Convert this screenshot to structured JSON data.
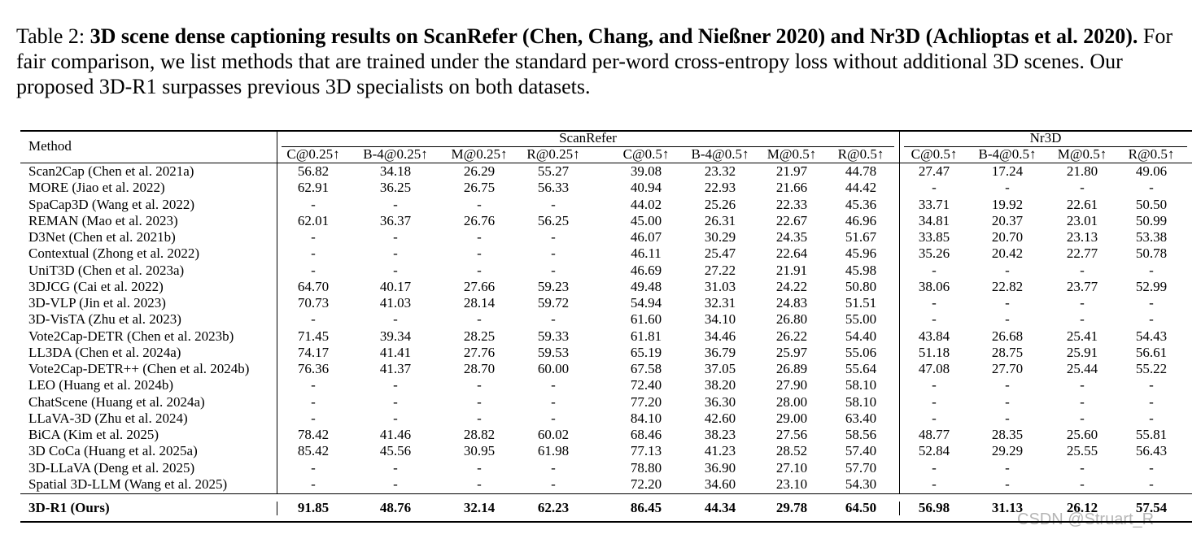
{
  "caption": {
    "label": "Table 2:",
    "title": "3D scene dense captioning results on ScanRefer (Chen, Chang, and Nießner 2020) and Nr3D (Achlioptas et al. 2020).",
    "text": "For fair comparison, we list methods that are trained under the standard per-word cross-entropy loss without additional 3D scenes. Our proposed 3D-R1 surpasses previous 3D specialists on both datasets."
  },
  "table": {
    "method_header": "Method",
    "groups": [
      {
        "name": "ScanRefer",
        "columns": [
          "C@0.25↑",
          "B-4@0.25↑",
          "M@0.25↑",
          "R@0.25↑",
          "C@0.5↑",
          "B-4@0.5↑",
          "M@0.5↑",
          "R@0.5↑"
        ]
      },
      {
        "name": "Nr3D",
        "columns": [
          "C@0.5↑",
          "B-4@0.5↑",
          "M@0.5↑",
          "R@0.5↑"
        ]
      }
    ],
    "rows": [
      [
        "Scan2Cap (Chen et al. 2021a)",
        "56.82",
        "34.18",
        "26.29",
        "55.27",
        "39.08",
        "23.32",
        "21.97",
        "44.78",
        "27.47",
        "17.24",
        "21.80",
        "49.06"
      ],
      [
        "MORE (Jiao et al. 2022)",
        "62.91",
        "36.25",
        "26.75",
        "56.33",
        "40.94",
        "22.93",
        "21.66",
        "44.42",
        "-",
        "-",
        "-",
        "-"
      ],
      [
        "SpaCap3D (Wang et al. 2022)",
        "-",
        "-",
        "-",
        "-",
        "44.02",
        "25.26",
        "22.33",
        "45.36",
        "33.71",
        "19.92",
        "22.61",
        "50.50"
      ],
      [
        "REMAN (Mao et al. 2023)",
        "62.01",
        "36.37",
        "26.76",
        "56.25",
        "45.00",
        "26.31",
        "22.67",
        "46.96",
        "34.81",
        "20.37",
        "23.01",
        "50.99"
      ],
      [
        "D3Net (Chen et al. 2021b)",
        "-",
        "-",
        "-",
        "-",
        "46.07",
        "30.29",
        "24.35",
        "51.67",
        "33.85",
        "20.70",
        "23.13",
        "53.38"
      ],
      [
        "Contextual (Zhong et al. 2022)",
        "-",
        "-",
        "-",
        "-",
        "46.11",
        "25.47",
        "22.64",
        "45.96",
        "35.26",
        "20.42",
        "22.77",
        "50.78"
      ],
      [
        "UniT3D (Chen et al. 2023a)",
        "-",
        "-",
        "-",
        "-",
        "46.69",
        "27.22",
        "21.91",
        "45.98",
        "-",
        "-",
        "-",
        "-"
      ],
      [
        "3DJCG (Cai et al. 2022)",
        "64.70",
        "40.17",
        "27.66",
        "59.23",
        "49.48",
        "31.03",
        "24.22",
        "50.80",
        "38.06",
        "22.82",
        "23.77",
        "52.99"
      ],
      [
        "3D-VLP (Jin et al. 2023)",
        "70.73",
        "41.03",
        "28.14",
        "59.72",
        "54.94",
        "32.31",
        "24.83",
        "51.51",
        "-",
        "-",
        "-",
        "-"
      ],
      [
        "3D-VisTA (Zhu et al. 2023)",
        "-",
        "-",
        "-",
        "-",
        "61.60",
        "34.10",
        "26.80",
        "55.00",
        "-",
        "-",
        "-",
        "-"
      ],
      [
        "Vote2Cap-DETR (Chen et al. 2023b)",
        "71.45",
        "39.34",
        "28.25",
        "59.33",
        "61.81",
        "34.46",
        "26.22",
        "54.40",
        "43.84",
        "26.68",
        "25.41",
        "54.43"
      ],
      [
        "LL3DA (Chen et al. 2024a)",
        "74.17",
        "41.41",
        "27.76",
        "59.53",
        "65.19",
        "36.79",
        "25.97",
        "55.06",
        "51.18",
        "28.75",
        "25.91",
        "56.61"
      ],
      [
        "Vote2Cap-DETR++ (Chen et al. 2024b)",
        "76.36",
        "41.37",
        "28.70",
        "60.00",
        "67.58",
        "37.05",
        "26.89",
        "55.64",
        "47.08",
        "27.70",
        "25.44",
        "55.22"
      ],
      [
        "LEO (Huang et al. 2024b)",
        "-",
        "-",
        "-",
        "-",
        "72.40",
        "38.20",
        "27.90",
        "58.10",
        "-",
        "-",
        "-",
        "-"
      ],
      [
        "ChatScene (Huang et al. 2024a)",
        "-",
        "-",
        "-",
        "-",
        "77.20",
        "36.30",
        "28.00",
        "58.10",
        "-",
        "-",
        "-",
        "-"
      ],
      [
        "LLaVA-3D (Zhu et al. 2024)",
        "-",
        "-",
        "-",
        "-",
        "84.10",
        "42.60",
        "29.00",
        "63.40",
        "-",
        "-",
        "-",
        "-"
      ],
      [
        "BiCA (Kim et al. 2025)",
        "78.42",
        "41.46",
        "28.82",
        "60.02",
        "68.46",
        "38.23",
        "27.56",
        "58.56",
        "48.77",
        "28.35",
        "25.60",
        "55.81"
      ],
      [
        "3D CoCa (Huang et al. 2025a)",
        "85.42",
        "45.56",
        "30.95",
        "61.98",
        "77.13",
        "41.23",
        "28.52",
        "57.40",
        "52.84",
        "29.29",
        "25.55",
        "56.43"
      ],
      [
        "3D-LLaVA (Deng et al. 2025)",
        "-",
        "-",
        "-",
        "-",
        "78.80",
        "36.90",
        "27.10",
        "57.70",
        "-",
        "-",
        "-",
        "-"
      ],
      [
        "Spatial 3D-LLM (Wang et al. 2025)",
        "-",
        "-",
        "-",
        "-",
        "72.20",
        "34.60",
        "23.10",
        "54.30",
        "-",
        "-",
        "-",
        "-"
      ]
    ],
    "ours_row": [
      "3D-R1 (Ours)",
      "91.85",
      "48.76",
      "32.14",
      "62.23",
      "86.45",
      "44.34",
      "29.78",
      "64.50",
      "56.98",
      "31.13",
      "26.12",
      "57.54"
    ]
  },
  "watermark": "CSDN @Struart_R"
}
